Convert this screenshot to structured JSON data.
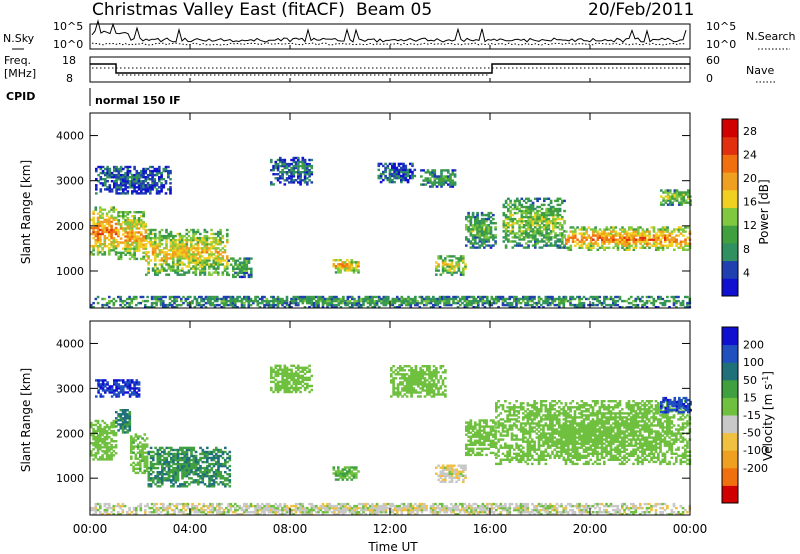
{
  "header": {
    "title": "Christmas Valley East (fitACF)",
    "beam": "Beam 05",
    "date": "20/Feb/2011"
  },
  "panels": {
    "nsky": {
      "label": "N.Sky",
      "left_ticks": [
        "10^5",
        "10^0"
      ],
      "right_label": "N.Search",
      "right_ticks": [
        "10^5",
        "10^0"
      ]
    },
    "freq": {
      "label_line1": "Freq.",
      "label_line2": "[MHz]",
      "left_ticks": [
        "18",
        "8"
      ],
      "right_label": "Nave",
      "right_ticks": [
        "60",
        "0"
      ]
    },
    "cpid": {
      "label": "CPID",
      "value": "normal 150 IF"
    }
  },
  "colors": {
    "power": [
      "#1010d0",
      "#2040b0",
      "#309060",
      "#40a040",
      "#80c840",
      "#f0d020",
      "#f0a020",
      "#f07010",
      "#e03010",
      "#d00000"
    ],
    "velocity": [
      "#1010d0",
      "#2050c0",
      "#20707a",
      "#40a040",
      "#70c040",
      "#c8c8c8",
      "#f0c040",
      "#f0a020",
      "#f07010",
      "#d00000"
    ],
    "axis": "#000000",
    "background": "#ffffff"
  },
  "chart_data": [
    {
      "type": "heatmap",
      "name": "power",
      "xlabel": "Time UT",
      "ylabel": "Slant Range [km]",
      "x_ticks": [
        "00:00",
        "04:00",
        "08:00",
        "12:00",
        "16:00",
        "20:00",
        "00:00"
      ],
      "xlim_hours": [
        0,
        24
      ],
      "y_ticks": [
        1000,
        2000,
        3000,
        4000
      ],
      "ylim": [
        180,
        4500
      ],
      "colorbar": {
        "label": "Power [dB]",
        "ticks": [
          4,
          8,
          12,
          16,
          20,
          24,
          28
        ],
        "range": [
          0,
          30
        ]
      },
      "echo_regions": [
        {
          "t": [
            0.0,
            1.1
          ],
          "r": [
            1350,
            2400
          ],
          "level": 22
        },
        {
          "t": [
            1.1,
            2.2
          ],
          "r": [
            1250,
            2300
          ],
          "level": 20
        },
        {
          "t": [
            2.2,
            5.5
          ],
          "r": [
            900,
            1900
          ],
          "level": 18
        },
        {
          "t": [
            5.5,
            6.4
          ],
          "r": [
            850,
            1300
          ],
          "level": 12
        },
        {
          "t": [
            0.2,
            3.2
          ],
          "r": [
            2700,
            3300
          ],
          "level": 6
        },
        {
          "t": [
            7.2,
            8.9
          ],
          "r": [
            2900,
            3500
          ],
          "level": 7
        },
        {
          "t": [
            9.7,
            10.7
          ],
          "r": [
            950,
            1250
          ],
          "level": 20
        },
        {
          "t": [
            11.5,
            13.0
          ],
          "r": [
            2950,
            3400
          ],
          "level": 6
        },
        {
          "t": [
            13.2,
            14.6
          ],
          "r": [
            2850,
            3250
          ],
          "level": 10
        },
        {
          "t": [
            13.8,
            15.0
          ],
          "r": [
            900,
            1350
          ],
          "level": 16
        },
        {
          "t": [
            15.0,
            16.2
          ],
          "r": [
            1500,
            2300
          ],
          "level": 12
        },
        {
          "t": [
            16.5,
            19.0
          ],
          "r": [
            1500,
            2600
          ],
          "level": 14
        },
        {
          "t": [
            19.0,
            24.0
          ],
          "r": [
            1450,
            1950
          ],
          "level": 22
        },
        {
          "t": [
            22.8,
            24.0
          ],
          "r": [
            2450,
            2800
          ],
          "level": 14
        },
        {
          "t": [
            0.0,
            24.0
          ],
          "r": [
            180,
            450
          ],
          "level": 10
        }
      ]
    },
    {
      "type": "heatmap",
      "name": "velocity",
      "xlabel": "Time UT",
      "ylabel": "Slant Range [km]",
      "x_ticks": [
        "00:00",
        "04:00",
        "08:00",
        "12:00",
        "16:00",
        "20:00",
        "00:00"
      ],
      "xlim_hours": [
        0,
        24
      ],
      "y_ticks": [
        1000,
        2000,
        3000,
        4000
      ],
      "ylim": [
        180,
        4500
      ],
      "colorbar": {
        "label": "Velocity [m s^-1]",
        "ticks": [
          200,
          100,
          50,
          15,
          -15,
          -50,
          -100,
          -200
        ],
        "range": [
          -250,
          250
        ]
      },
      "echo_regions": [
        {
          "t": [
            0.0,
            1.0
          ],
          "r": [
            1400,
            2300
          ],
          "level": 0
        },
        {
          "t": [
            1.0,
            1.6
          ],
          "r": [
            2000,
            2500
          ],
          "level": 60
        },
        {
          "t": [
            1.6,
            2.3
          ],
          "r": [
            1100,
            2000
          ],
          "level": 5
        },
        {
          "t": [
            2.3,
            5.6
          ],
          "r": [
            800,
            1700
          ],
          "level": 45
        },
        {
          "t": [
            0.2,
            2.0
          ],
          "r": [
            2800,
            3200
          ],
          "level": 200
        },
        {
          "t": [
            7.2,
            8.9
          ],
          "r": [
            2900,
            3500
          ],
          "level": 0
        },
        {
          "t": [
            9.7,
            10.7
          ],
          "r": [
            950,
            1250
          ],
          "level": 20
        },
        {
          "t": [
            12.0,
            14.2
          ],
          "r": [
            2800,
            3500
          ],
          "level": 0
        },
        {
          "t": [
            13.8,
            15.0
          ],
          "r": [
            900,
            1300
          ],
          "level": -40
        },
        {
          "t": [
            15.0,
            16.2
          ],
          "r": [
            1500,
            2300
          ],
          "level": 0
        },
        {
          "t": [
            16.2,
            24.0
          ],
          "r": [
            1300,
            2700
          ],
          "level": 0
        },
        {
          "t": [
            22.8,
            24.0
          ],
          "r": [
            2450,
            2800
          ],
          "level": 180
        },
        {
          "t": [
            0.0,
            24.0
          ],
          "r": [
            180,
            420
          ],
          "level": -30
        }
      ]
    }
  ]
}
